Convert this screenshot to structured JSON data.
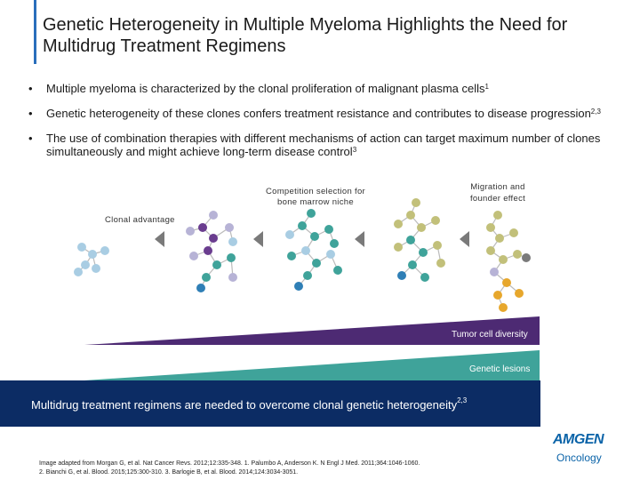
{
  "title": "Genetic Heterogeneity in Multiple Myeloma Highlights the Need for Multidrug Treatment Regimens",
  "bullets": [
    {
      "text": "Multiple myeloma is characterized by the clonal proliferation of malignant plasma cells",
      "sup": "1"
    },
    {
      "text": "Genetic heterogeneity of these clones confers treatment resistance and contributes to disease progression",
      "sup": "2,3"
    },
    {
      "text": "The use of combination therapies with different mechanisms of action can target maximum number of clones simultaneously and might achieve long-term disease control",
      "sup": "3"
    }
  ],
  "figure": {
    "label_competition": "Competition selection for bone marrow niche",
    "label_migration": "Migration and founder effect",
    "label_clonal": "Clonal advantage",
    "band_diversity": "Tumor cell diversity",
    "band_genetic": "Genetic lesions",
    "colors": {
      "light_blue": "#a9cde3",
      "lavender": "#b7b3d6",
      "purple": "#6a3d8f",
      "teal": "#3fa39a",
      "blue": "#2f7fb6",
      "gold": "#e7a72c",
      "olive": "#c2c07a",
      "gray": "#7a7a7a",
      "band_purple": "#4d2a73",
      "band_teal": "#3fa39a"
    }
  },
  "banner": {
    "text": "Multidrug treatment regimens are needed to overcome clonal genetic heterogeneity",
    "sup": "2,3"
  },
  "references": {
    "line1": "Image adapted from Morgan G, et al. Nat Cancer Revs. 2012;12:335-348. 1. Palumbo A, Anderson K. N Engl J Med. 2011;364:1046-1060.",
    "line2": "2. Bianchi G, et al. Blood. 2015;125:300-310. 3. Barlogie B, et al. Blood. 2014;124:3034-3051."
  },
  "logo": {
    "word": "AMGEN",
    "sub": "Oncology"
  }
}
